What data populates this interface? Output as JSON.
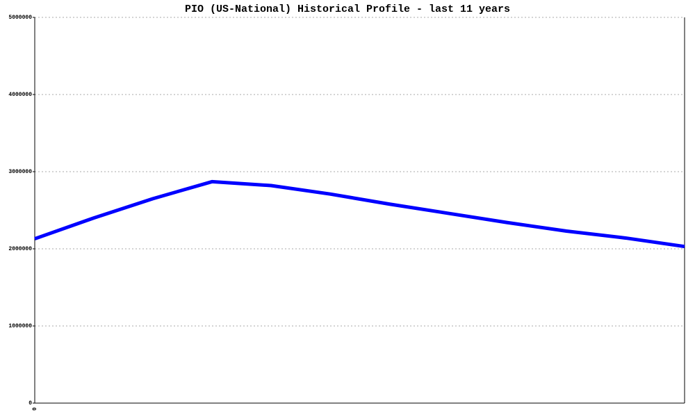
{
  "chart_data": {
    "type": "line",
    "title": "PIO (US-National) Historical Profile - last 11 years",
    "categories": [
      "0",
      null,
      null,
      null,
      null,
      null,
      null,
      null,
      null,
      null,
      null,
      null
    ],
    "series": [
      {
        "color": "#0000ff",
        "values": [
          2130000,
          2400000,
          2650000,
          2870000,
          2820000,
          2710000,
          2580000,
          2460000,
          2340000,
          2230000,
          2140000,
          2030000
        ]
      }
    ],
    "ylim": [
      0,
      5000000
    ],
    "yticks": [
      0,
      1000000,
      2000000,
      3000000,
      4000000,
      5000000
    ],
    "grid": true
  }
}
